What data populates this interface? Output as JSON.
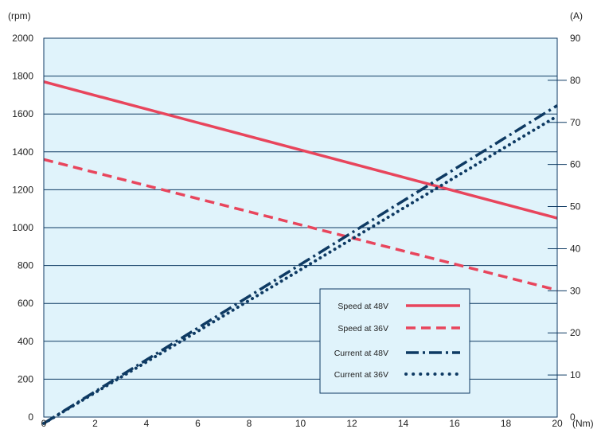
{
  "chart_data": {
    "type": "line",
    "x_unit": "(Nm)",
    "y_left_unit": "(rpm)",
    "y_right_unit": "(A)",
    "xlim": [
      0,
      20
    ],
    "ylim_left": [
      0,
      2000
    ],
    "ylim_right": [
      0,
      90
    ],
    "x_ticks": [
      "0",
      "2",
      "4",
      "6",
      "8",
      "10",
      "12",
      "14",
      "16",
      "18",
      "20"
    ],
    "y_left_ticks": [
      "0",
      "200",
      "400",
      "600",
      "800",
      "1000",
      "1200",
      "1400",
      "1600",
      "1800",
      "2000"
    ],
    "y_right_ticks": [
      "0",
      "10",
      "20",
      "30",
      "40",
      "50",
      "60",
      "70",
      "80",
      "90"
    ],
    "grid": true,
    "legend_position": "lower-right",
    "colors": {
      "plot_background": "#e0f3fb",
      "speed": "#e8455c",
      "current": "#0e3a63"
    },
    "series": [
      {
        "name": "Speed at 48V",
        "axis": "left",
        "style": "solid",
        "x": [
          0,
          20
        ],
        "y": [
          1770,
          1050
        ]
      },
      {
        "name": "Speed at 36V",
        "axis": "left",
        "style": "dashed",
        "x": [
          0,
          20
        ],
        "y": [
          1360,
          670
        ]
      },
      {
        "name": "Current at 48V",
        "axis": "right",
        "style": "dashdot",
        "x": [
          0,
          20
        ],
        "y": [
          -1.5,
          74
        ]
      },
      {
        "name": "Current at 36V",
        "axis": "right",
        "style": "dotted",
        "x": [
          0,
          20
        ],
        "y": [
          -1.5,
          71.5
        ]
      }
    ]
  }
}
